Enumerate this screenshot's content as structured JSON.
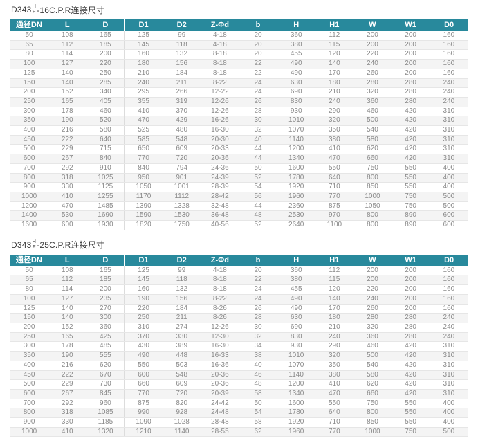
{
  "colors": {
    "header_bg": "#28899C",
    "header_text": "#ffffff",
    "stripe": "#f4f4f4",
    "body_text": "#8a8a8a",
    "title_text": "#3c3c3c"
  },
  "tables": [
    {
      "title": {
        "model": "D343",
        "frac_top": "H",
        "frac_bottom": "F",
        "suffix": "-16C.P.R连接尺寸"
      },
      "columns": [
        "通径DN",
        "L",
        "D",
        "D1",
        "D2",
        "Z-Φd",
        "b",
        "H",
        "H1",
        "W",
        "W1",
        "D0"
      ],
      "rows": [
        [
          50,
          108,
          165,
          125,
          99,
          "4-18",
          20,
          360,
          112,
          200,
          200,
          160
        ],
        [
          65,
          112,
          185,
          145,
          118,
          "4-18",
          20,
          380,
          115,
          200,
          200,
          160
        ],
        [
          80,
          114,
          200,
          160,
          132,
          "8-18",
          20,
          455,
          120,
          220,
          200,
          160
        ],
        [
          100,
          127,
          220,
          180,
          156,
          "8-18",
          22,
          490,
          140,
          240,
          200,
          160
        ],
        [
          125,
          140,
          250,
          210,
          184,
          "8-18",
          22,
          490,
          170,
          260,
          200,
          160
        ],
        [
          150,
          140,
          285,
          240,
          211,
          "8-22",
          24,
          630,
          180,
          280,
          280,
          240
        ],
        [
          200,
          152,
          340,
          295,
          266,
          "12-22",
          24,
          690,
          210,
          320,
          280,
          240
        ],
        [
          250,
          165,
          405,
          355,
          319,
          "12-26",
          26,
          830,
          240,
          360,
          280,
          240
        ],
        [
          300,
          178,
          460,
          410,
          370,
          "12-26",
          28,
          930,
          290,
          460,
          420,
          310
        ],
        [
          350,
          190,
          520,
          470,
          429,
          "16-26",
          30,
          1010,
          320,
          500,
          420,
          310
        ],
        [
          400,
          216,
          580,
          525,
          480,
          "16-30",
          32,
          1070,
          350,
          540,
          420,
          310
        ],
        [
          450,
          222,
          640,
          585,
          548,
          "20-30",
          40,
          1140,
          380,
          580,
          420,
          310
        ],
        [
          500,
          229,
          715,
          650,
          609,
          "20-33",
          44,
          1200,
          410,
          620,
          420,
          310
        ],
        [
          600,
          267,
          840,
          770,
          720,
          "20-36",
          44,
          1340,
          470,
          660,
          420,
          310
        ],
        [
          700,
          292,
          910,
          840,
          794,
          "24-36",
          50,
          1600,
          550,
          750,
          550,
          400
        ],
        [
          800,
          318,
          1025,
          950,
          901,
          "24-39",
          52,
          1780,
          640,
          800,
          550,
          400
        ],
        [
          900,
          330,
          1125,
          1050,
          1001,
          "28-39",
          54,
          1920,
          710,
          850,
          550,
          400
        ],
        [
          1000,
          410,
          1255,
          1170,
          1112,
          "28-42",
          56,
          1960,
          770,
          1000,
          750,
          500
        ],
        [
          1200,
          470,
          1485,
          1390,
          1328,
          "32-48",
          44,
          2360,
          875,
          1050,
          750,
          500
        ],
        [
          1400,
          530,
          1690,
          1590,
          1530,
          "36-48",
          48,
          2530,
          970,
          800,
          890,
          600
        ],
        [
          1600,
          600,
          1930,
          1820,
          1750,
          "40-56",
          52,
          2640,
          1100,
          800,
          890,
          600
        ]
      ]
    },
    {
      "title": {
        "model": "D343",
        "frac_top": "H",
        "frac_bottom": "F",
        "suffix": "-25C.P.R连接尺寸"
      },
      "columns": [
        "通径DN",
        "L",
        "D",
        "D1",
        "D2",
        "Z-Φd",
        "b",
        "H",
        "H1",
        "W",
        "W1",
        "D0"
      ],
      "rows": [
        [
          50,
          108,
          165,
          125,
          99,
          "4-18",
          20,
          360,
          112,
          200,
          200,
          160
        ],
        [
          65,
          112,
          185,
          145,
          118,
          "8-18",
          22,
          380,
          115,
          200,
          200,
          160
        ],
        [
          80,
          114,
          200,
          160,
          132,
          "8-18",
          24,
          455,
          120,
          220,
          200,
          160
        ],
        [
          100,
          127,
          235,
          190,
          156,
          "8-22",
          24,
          490,
          140,
          240,
          200,
          160
        ],
        [
          125,
          140,
          270,
          220,
          184,
          "8-26",
          26,
          490,
          170,
          260,
          200,
          160
        ],
        [
          150,
          140,
          300,
          250,
          211,
          "8-26",
          28,
          630,
          180,
          280,
          280,
          240
        ],
        [
          200,
          152,
          360,
          310,
          274,
          "12-26",
          30,
          690,
          210,
          320,
          280,
          240
        ],
        [
          250,
          165,
          425,
          370,
          330,
          "12-30",
          32,
          830,
          240,
          360,
          280,
          240
        ],
        [
          300,
          178,
          485,
          430,
          389,
          "16-30",
          34,
          930,
          290,
          460,
          420,
          310
        ],
        [
          350,
          190,
          555,
          490,
          448,
          "16-33",
          38,
          1010,
          320,
          500,
          420,
          310
        ],
        [
          400,
          216,
          620,
          550,
          503,
          "16-36",
          40,
          1070,
          350,
          540,
          420,
          310
        ],
        [
          450,
          222,
          670,
          600,
          548,
          "20-36",
          46,
          1140,
          380,
          580,
          420,
          310
        ],
        [
          500,
          229,
          730,
          660,
          609,
          "20-36",
          48,
          1200,
          410,
          620,
          420,
          310
        ],
        [
          600,
          267,
          845,
          770,
          720,
          "20-39",
          58,
          1340,
          470,
          660,
          420,
          310
        ],
        [
          700,
          292,
          960,
          875,
          820,
          "24-42",
          50,
          1600,
          550,
          750,
          550,
          400
        ],
        [
          800,
          318,
          1085,
          990,
          928,
          "24-48",
          54,
          1780,
          640,
          800,
          550,
          400
        ],
        [
          900,
          330,
          1185,
          1090,
          1028,
          "28-48",
          58,
          1920,
          710,
          850,
          550,
          400
        ],
        [
          1000,
          410,
          1320,
          1210,
          1140,
          "28-55",
          62,
          1960,
          770,
          1000,
          750,
          500
        ]
      ]
    }
  ]
}
